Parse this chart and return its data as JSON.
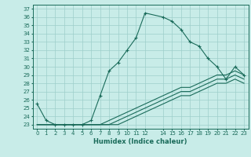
{
  "title": "",
  "xlabel": "Humidex (Indice chaleur)",
  "bg_color": "#c8ece8",
  "grid_color": "#9ecfca",
  "line_color": "#1a6b5a",
  "xlim": [
    -0.5,
    23.5
  ],
  "ylim": [
    22.5,
    37.5
  ],
  "xticks": [
    0,
    1,
    2,
    3,
    4,
    5,
    6,
    7,
    8,
    9,
    10,
    11,
    12,
    14,
    15,
    16,
    17,
    18,
    19,
    20,
    21,
    22,
    23
  ],
  "yticks": [
    23,
    24,
    25,
    26,
    27,
    28,
    29,
    30,
    31,
    32,
    33,
    34,
    35,
    36,
    37
  ],
  "line1_x": [
    0,
    1,
    2,
    3,
    4,
    5,
    6,
    7,
    8,
    9,
    10,
    11,
    12,
    14,
    15,
    16,
    17,
    18,
    19,
    20,
    21,
    22,
    23
  ],
  "line1_y": [
    25.5,
    23.5,
    23.0,
    23.0,
    23.0,
    23.0,
    23.5,
    26.5,
    29.5,
    30.5,
    32.0,
    33.5,
    36.5,
    36.0,
    35.5,
    34.5,
    33.0,
    32.5,
    31.0,
    30.0,
    28.5,
    30.0,
    29.0
  ],
  "line2_x": [
    0,
    1,
    2,
    3,
    4,
    5,
    6,
    7,
    8,
    9,
    10,
    11,
    12,
    14,
    15,
    16,
    17,
    18,
    19,
    20,
    21,
    22,
    23
  ],
  "line2_y": [
    23.0,
    23.0,
    23.0,
    23.0,
    23.0,
    23.0,
    23.0,
    23.0,
    23.5,
    24.0,
    24.5,
    25.0,
    25.5,
    26.5,
    27.0,
    27.5,
    27.5,
    28.0,
    28.5,
    29.0,
    29.0,
    29.5,
    29.0
  ],
  "line3_x": [
    0,
    1,
    2,
    3,
    4,
    5,
    6,
    7,
    8,
    9,
    10,
    11,
    12,
    14,
    15,
    16,
    17,
    18,
    19,
    20,
    21,
    22,
    23
  ],
  "line3_y": [
    23.0,
    23.0,
    23.0,
    23.0,
    23.0,
    23.0,
    23.0,
    23.0,
    23.0,
    23.5,
    24.0,
    24.5,
    25.0,
    26.0,
    26.5,
    27.0,
    27.0,
    27.5,
    28.0,
    28.5,
    28.5,
    29.0,
    28.5
  ],
  "line4_x": [
    0,
    1,
    2,
    3,
    4,
    5,
    6,
    7,
    8,
    9,
    10,
    11,
    12,
    14,
    15,
    16,
    17,
    18,
    19,
    20,
    21,
    22,
    23
  ],
  "line4_y": [
    23.0,
    23.0,
    23.0,
    23.0,
    23.0,
    23.0,
    23.0,
    23.0,
    23.0,
    23.0,
    23.5,
    24.0,
    24.5,
    25.5,
    26.0,
    26.5,
    26.5,
    27.0,
    27.5,
    28.0,
    28.0,
    28.5,
    28.0
  ],
  "tick_fontsize": 5.0,
  "xlabel_fontsize": 6.0
}
